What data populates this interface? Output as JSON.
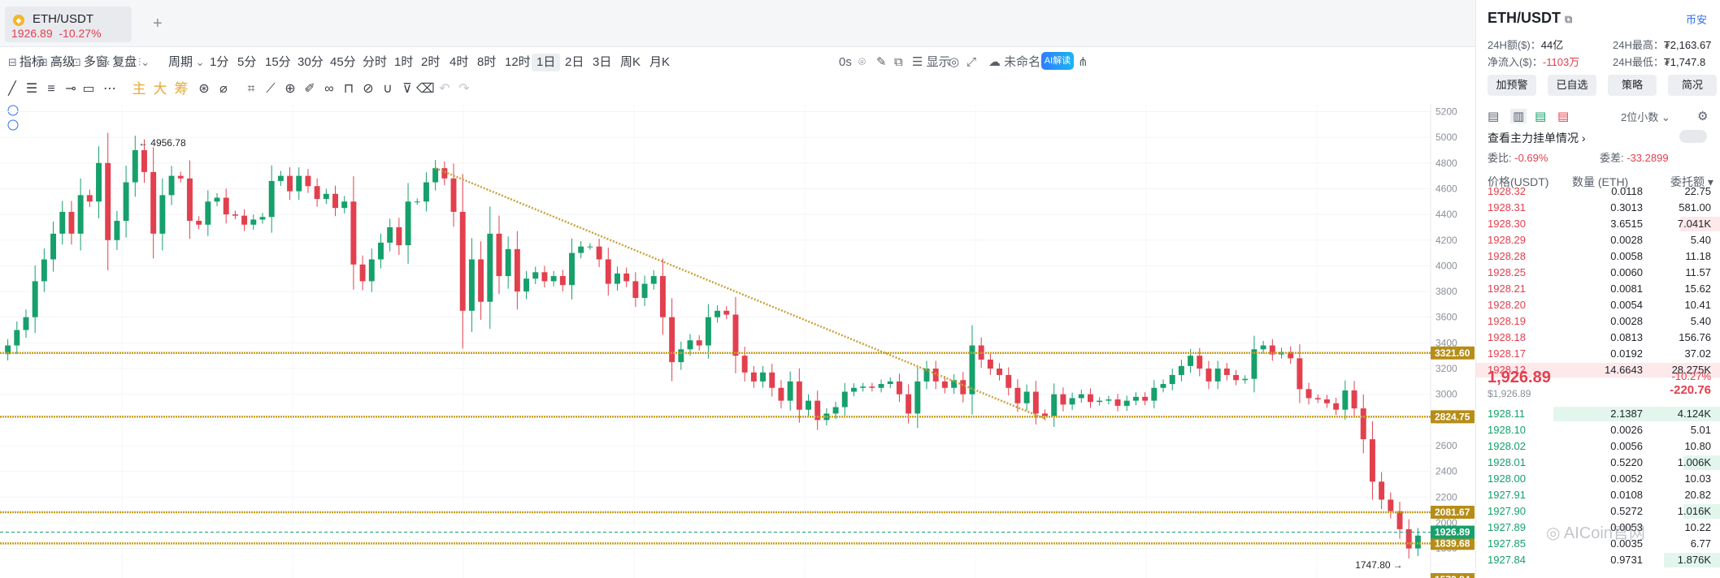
{
  "tab": {
    "symbol": "ETH/USDT",
    "price": "1926.89",
    "change": "-10.27%",
    "coin_icon": "eth-coin-icon"
  },
  "add_tab": "+",
  "toolbar": {
    "indicator": "指标",
    "advanced": "高级",
    "multi_window": "多窗",
    "replay": "复盘",
    "period_label": "周期",
    "intervals": [
      "1分",
      "5分",
      "15分",
      "30分",
      "45分",
      "分时",
      "1时",
      "2时",
      "4时",
      "8时",
      "12时",
      "1日",
      "2日",
      "3日",
      "周K",
      "月K"
    ],
    "active_interval": "1日",
    "countdown": "0s",
    "display": "显示",
    "unnamed": "未命名",
    "ai": "AI解读"
  },
  "draw_tools": {
    "main": "主",
    "big": "大",
    "chip": "筹"
  },
  "chart_data": {
    "type": "candlestick",
    "symbol": "ETH/USDT",
    "interval": "1日",
    "y_ticks": [
      5200,
      5000,
      4800,
      4600,
      4400,
      4200,
      4000,
      3800,
      3600,
      3400,
      3200,
      3000,
      2800,
      2600,
      2400,
      2200,
      2000,
      1800
    ],
    "ylim": [
      1570,
      5260
    ],
    "horizontal_levels": [
      "3321.60",
      "2824.75",
      "2081.67",
      "1839.68"
    ],
    "current_price_tag": "1926.89",
    "cut_off_tag": "1572.84",
    "high_marker": "4956.78",
    "low_marker": "1747.80",
    "high_marker_arrow": "←",
    "low_marker_arrow": "→",
    "trendline_start_value": 4760,
    "trendline_end_value": 2810,
    "closes": [
      3380,
      3500,
      3600,
      3880,
      4050,
      4250,
      4420,
      4250,
      4550,
      4500,
      4800,
      4200,
      4350,
      4650,
      4900,
      4730,
      4250,
      4550,
      4700,
      4680,
      4350,
      4320,
      4500,
      4530,
      4400,
      4390,
      4320,
      4360,
      4380,
      4660,
      4700,
      4580,
      4700,
      4620,
      4520,
      4560,
      4450,
      4500,
      4010,
      3880,
      4050,
      4180,
      4300,
      4160,
      4500,
      4500,
      4650,
      4760,
      4680,
      4420,
      3650,
      4050,
      3720,
      4250,
      3920,
      4130,
      3800,
      3900,
      3950,
      3880,
      3920,
      3850,
      4100,
      4150,
      4150,
      4050,
      3860,
      3940,
      3880,
      3750,
      3860,
      3920,
      3600,
      3250,
      3350,
      3420,
      3380,
      3600,
      3650,
      3620,
      3300,
      3170,
      3100,
      3170,
      3050,
      2950,
      3100,
      2880,
      2950,
      2800,
      2850,
      2900,
      3020,
      3050,
      3060,
      3050,
      3080,
      3100,
      3000,
      2850,
      3100,
      3200,
      3100,
      3050,
      3110,
      3000,
      3380,
      3270,
      3200,
      3150,
      3050,
      2930,
      3020,
      2850,
      2830,
      3000,
      2920,
      2970,
      3000,
      2940,
      2950,
      2960,
      2910,
      2950,
      2980,
      2950,
      3050,
      3080,
      3150,
      3220,
      3300,
      3200,
      3100,
      3200,
      3150,
      3110,
      3120,
      3350,
      3380,
      3310,
      3330,
      3280,
      3040,
      2970,
      2960,
      2930,
      2880,
      3030,
      2890,
      2650,
      2320,
      2180,
      2090,
      1950,
      1800,
      1900
    ],
    "series": [
      {
        "name": "ETH/USDT",
        "color_up": "#16a06b",
        "color_down": "#e2404e"
      }
    ]
  },
  "panel": {
    "title": "ETH/USDT",
    "link": "币安",
    "vol_24h_label": "24H额($)：",
    "vol_24h": "44亿",
    "high_24h_label": "24H最高：",
    "high_24h": "₮2,163.67",
    "netflow_label": "净流入($)：",
    "netflow": "-1103万",
    "low_24h_label": "24H最低：",
    "low_24h": "₮1,747.8",
    "buttons": [
      "加预警",
      "已自选",
      "策略",
      "简况"
    ],
    "decimals": "2位小数",
    "main_orders": "查看主力挂单情况",
    "ratio_label": "委比:",
    "ratio": "-0.69%",
    "diff_label": "委差:",
    "diff": "-33.2899",
    "col_price": "价格(USDT)",
    "col_qty": "数量 (ETH)",
    "col_total": "委托额",
    "asks": [
      {
        "price": "1928.32",
        "qty": "0.0118",
        "total": "22.75",
        "bar": 0
      },
      {
        "price": "1928.31",
        "qty": "0.3013",
        "total": "581.00",
        "bar": 0
      },
      {
        "price": "1928.30",
        "qty": "3.6515",
        "total": "7.041K",
        "bar": 50
      },
      {
        "price": "1928.29",
        "qty": "0.0028",
        "total": "5.40",
        "bar": 0
      },
      {
        "price": "1928.28",
        "qty": "0.0058",
        "total": "11.18",
        "bar": 0
      },
      {
        "price": "1928.25",
        "qty": "0.0060",
        "total": "11.57",
        "bar": 0
      },
      {
        "price": "1928.21",
        "qty": "0.0081",
        "total": "15.62",
        "bar": 0
      },
      {
        "price": "1928.20",
        "qty": "0.0054",
        "total": "10.41",
        "bar": 0
      },
      {
        "price": "1928.19",
        "qty": "0.0028",
        "total": "5.40",
        "bar": 0
      },
      {
        "price": "1928.18",
        "qty": "0.0813",
        "total": "156.76",
        "bar": 0
      },
      {
        "price": "1928.17",
        "qty": "0.0192",
        "total": "37.02",
        "bar": 0
      },
      {
        "price": "1928.12",
        "qty": "14.6643",
        "total": "28.275K",
        "bar": 301
      }
    ],
    "last_price": "1,926.89",
    "last_price_usd": "$1,926.89",
    "last_change_pct": "-10.27%",
    "last_change": "-220.76",
    "bids": [
      {
        "price": "1928.11",
        "qty": "2.1387",
        "total": "4.124K",
        "bar": 206
      },
      {
        "price": "1928.10",
        "qty": "0.0026",
        "total": "5.01",
        "bar": 0
      },
      {
        "price": "1928.02",
        "qty": "0.0056",
        "total": "10.80",
        "bar": 0
      },
      {
        "price": "1928.01",
        "qty": "0.5220",
        "total": "1.006K",
        "bar": 46
      },
      {
        "price": "1928.00",
        "qty": "0.0052",
        "total": "10.03",
        "bar": 0
      },
      {
        "price": "1927.91",
        "qty": "0.0108",
        "total": "20.82",
        "bar": 0
      },
      {
        "price": "1927.90",
        "qty": "0.5272",
        "total": "1.016K",
        "bar": 46
      },
      {
        "price": "1927.89",
        "qty": "0.0053",
        "total": "10.22",
        "bar": 0
      },
      {
        "price": "1927.85",
        "qty": "0.0035",
        "total": "6.77",
        "bar": 0
      },
      {
        "price": "1927.84",
        "qty": "0.9731",
        "total": "1.876K",
        "bar": 70
      }
    ],
    "watermark": "AICoin官网"
  }
}
